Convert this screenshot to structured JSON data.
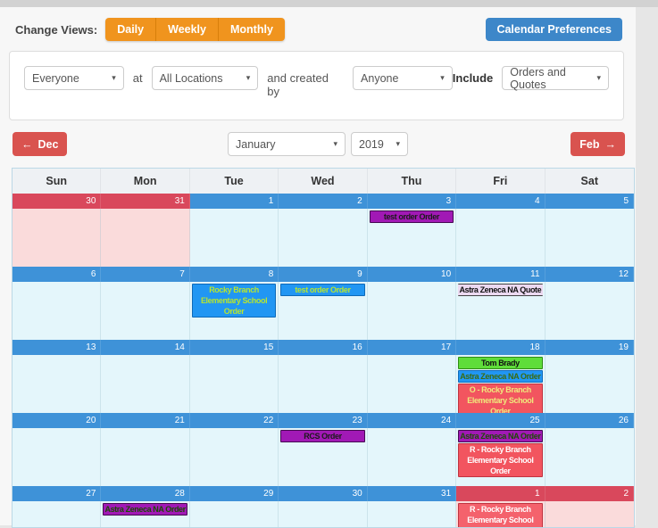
{
  "icons": {
    "dropdown": "▾",
    "arrow_left": "←",
    "arrow_right": "→"
  },
  "toolbar": {
    "change_views_label": "Change Views:",
    "views": [
      {
        "label": "Daily"
      },
      {
        "label": "Weekly"
      },
      {
        "label": "Monthly"
      }
    ],
    "view_group_color": "#f0941e",
    "preferences_label": "Calendar Preferences",
    "preferences_color": "#3d87c9"
  },
  "filters": {
    "who": {
      "value": "Everyone"
    },
    "at_label": "at",
    "location": {
      "value": "All Locations"
    },
    "created_by_label": "and created by",
    "creator": {
      "value": "Anyone"
    },
    "include_label": "Include",
    "include": {
      "value": "Orders and Quotes"
    }
  },
  "nav": {
    "prev_label": "Dec",
    "next_label": "Feb",
    "button_color": "#d9534f",
    "month": {
      "value": "January"
    },
    "year": {
      "value": "2019"
    }
  },
  "calendar": {
    "colors": {
      "current_month_bar": "#3e92d8",
      "other_month_bar": "#d9485c",
      "current_month_cell": "#e4f6fb",
      "other_month_cell": "#fadbdb",
      "header_bg": "#eef1f4"
    },
    "day_headers": [
      "Sun",
      "Mon",
      "Tue",
      "Wed",
      "Thu",
      "Fri",
      "Sat"
    ],
    "weeks": [
      {
        "days": [
          {
            "num": "30",
            "other": true
          },
          {
            "num": "31",
            "other": true
          },
          {
            "num": "1"
          },
          {
            "num": "2"
          },
          {
            "num": "3",
            "events": [
              {
                "label": "test order Order",
                "bg": "#a119b5",
                "fg": "#1a1a1a",
                "border": "#450a52"
              }
            ]
          },
          {
            "num": "4"
          },
          {
            "num": "5"
          }
        ]
      },
      {
        "days": [
          {
            "num": "6"
          },
          {
            "num": "7"
          },
          {
            "num": "8",
            "events": [
              {
                "label": "Rocky Branch Elementary School Order",
                "bg": "#2196f3",
                "fg": "#b8e62e",
                "border": "#0f6ab8"
              }
            ]
          },
          {
            "num": "9",
            "events": [
              {
                "label": "test order Order",
                "bg": "#2196f3",
                "fg": "#b8e62e",
                "border": "#0f6ab8"
              }
            ]
          },
          {
            "num": "10"
          },
          {
            "num": "11",
            "events": [
              {
                "label": "Astra Zeneca NA Quote",
                "bg": "#ecd9f1",
                "fg": "#111111",
                "border": "#444444",
                "quote": true
              }
            ]
          },
          {
            "num": "12"
          }
        ]
      },
      {
        "days": [
          {
            "num": "13"
          },
          {
            "num": "14"
          },
          {
            "num": "15"
          },
          {
            "num": "16"
          },
          {
            "num": "17"
          },
          {
            "num": "18",
            "events": [
              {
                "label": "Tom Brady",
                "bg": "#5fdd3a",
                "fg": "#111111",
                "border": "#2f8d14"
              },
              {
                "label": "Astra Zeneca NA Order",
                "bg": "#2196f3",
                "fg": "#3c6b10",
                "border": "#0f6ab8"
              },
              {
                "label": "O - Rocky Branch Elementary School Order",
                "bg": "#f2555f",
                "fg": "#f0e87c",
                "border": "#c03340"
              }
            ]
          },
          {
            "num": "19"
          }
        ]
      },
      {
        "days": [
          {
            "num": "20"
          },
          {
            "num": "21"
          },
          {
            "num": "22"
          },
          {
            "num": "23",
            "events": [
              {
                "label": "RCS Order",
                "bg": "#a119b5",
                "fg": "#1a1a1a",
                "border": "#450a52"
              }
            ]
          },
          {
            "num": "24"
          },
          {
            "num": "25",
            "events": [
              {
                "label": "Astra Zeneca NA Order",
                "bg": "#a119b5",
                "fg": "#1c4a06",
                "border": "#450a52"
              },
              {
                "label": "R - Rocky Branch Elementary School Order",
                "bg": "#f2555f",
                "fg": "#ffffff",
                "border": "#c03340"
              }
            ]
          },
          {
            "num": "26"
          }
        ]
      },
      {
        "days": [
          {
            "num": "27"
          },
          {
            "num": "28",
            "events": [
              {
                "label": "Astra Zeneca NA Order",
                "bg": "#a119b5",
                "fg": "#1c4a06",
                "border": "#450a52"
              }
            ]
          },
          {
            "num": "29"
          },
          {
            "num": "30"
          },
          {
            "num": "31"
          },
          {
            "num": "1",
            "other": true,
            "events": [
              {
                "label": "R - Rocky Branch Elementary School Order",
                "bg": "#f4626c",
                "fg": "#ffffff",
                "border": "#c03340"
              }
            ]
          },
          {
            "num": "2",
            "other": true
          }
        ]
      }
    ]
  }
}
